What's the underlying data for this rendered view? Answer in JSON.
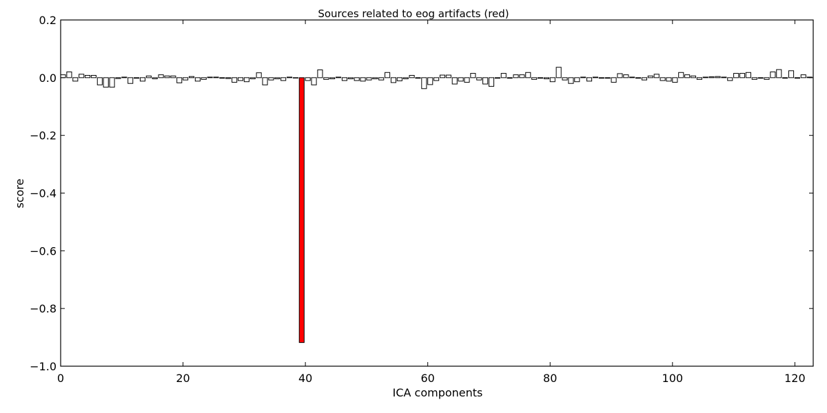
{
  "chart_data": {
    "type": "bar",
    "title": "Sources related to eog artifacts (red)",
    "xlabel": "ICA components",
    "ylabel": "score",
    "xlim": [
      0,
      123
    ],
    "ylim": [
      -1.0,
      0.2
    ],
    "xticks": [
      0,
      20,
      40,
      60,
      80,
      100,
      120
    ],
    "xtick_labels": [
      "0",
      "20",
      "40",
      "60",
      "80",
      "100",
      "120"
    ],
    "yticks": [
      0.2,
      0.0,
      -0.2,
      -0.4,
      -0.6,
      -0.8,
      -1.0
    ],
    "ytick_labels": [
      "0.2",
      "0.0",
      "−0.2",
      "−0.4",
      "−0.6",
      "−0.8",
      "−1.0"
    ],
    "grid": false,
    "legend": "none",
    "bar_fill": "#ffffff",
    "highlight_fill": "#ff0000",
    "highlight_index": 39,
    "series": [
      {
        "values": [
          0.01,
          0.02,
          -0.012,
          0.012,
          0.008,
          0.008,
          -0.025,
          -0.033,
          -0.033,
          -0.003,
          0.002,
          -0.02,
          -0.002,
          -0.012,
          0.006,
          -0.004,
          0.01,
          0.006,
          0.006,
          -0.018,
          -0.008,
          0.004,
          -0.012,
          -0.006,
          0.002,
          0.002,
          -0.002,
          -0.003,
          -0.016,
          -0.01,
          -0.014,
          -0.004,
          0.017,
          -0.025,
          -0.008,
          -0.004,
          -0.01,
          0.002,
          0.0,
          -0.918,
          -0.01,
          -0.025,
          0.027,
          -0.006,
          -0.004,
          0.002,
          -0.01,
          -0.004,
          -0.01,
          -0.012,
          -0.008,
          -0.004,
          -0.008,
          0.018,
          -0.017,
          -0.011,
          -0.004,
          0.008,
          -0.002,
          -0.038,
          -0.024,
          -0.01,
          0.009,
          0.009,
          -0.022,
          -0.012,
          -0.016,
          0.015,
          -0.008,
          -0.022,
          -0.03,
          -0.002,
          0.015,
          -0.002,
          0.01,
          0.01,
          0.018,
          -0.006,
          -0.002,
          -0.004,
          -0.014,
          0.036,
          -0.008,
          -0.02,
          -0.014,
          0.002,
          -0.012,
          0.002,
          -0.002,
          -0.002,
          -0.016,
          0.014,
          0.01,
          0.002,
          -0.002,
          -0.008,
          0.006,
          0.012,
          -0.01,
          -0.012,
          -0.016,
          0.018,
          0.01,
          0.006,
          -0.006,
          0.002,
          0.003,
          0.004,
          0.002,
          -0.01,
          0.015,
          0.015,
          0.018,
          -0.006,
          -0.002,
          -0.006,
          0.02,
          0.028,
          -0.002,
          0.024,
          -0.002,
          0.01,
          0.002
        ]
      }
    ]
  }
}
